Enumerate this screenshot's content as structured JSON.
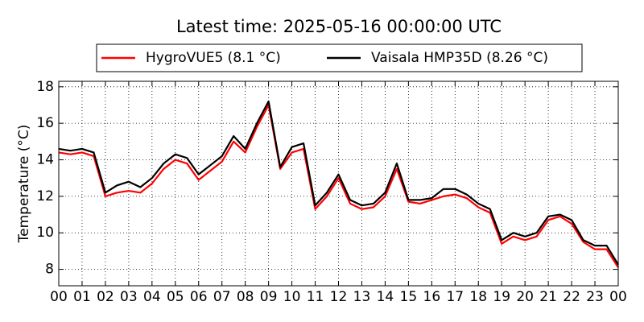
{
  "chart_data": {
    "type": "line",
    "title": "Latest time: 2025-05-16 00:00:00 UTC",
    "y_label": "Temperature (°C)",
    "x": [
      0,
      0.5,
      1,
      1.5,
      2,
      2.5,
      3,
      3.5,
      4,
      4.5,
      5,
      5.5,
      6,
      6.5,
      7,
      7.5,
      8,
      8.5,
      9,
      9.5,
      10,
      10.5,
      11,
      11.5,
      12,
      12.5,
      13,
      13.5,
      14,
      14.5,
      15,
      15.5,
      16,
      16.5,
      17,
      17.5,
      18,
      18.5,
      19,
      19.5,
      20,
      20.5,
      21,
      21.5,
      22,
      22.5,
      23,
      23.5,
      24
    ],
    "series": [
      {
        "name": "HygroVUE5 (8.1 °C)",
        "color": "#ff0000",
        "values": [
          14.4,
          14.3,
          14.4,
          14.2,
          12.0,
          12.2,
          12.3,
          12.2,
          12.7,
          13.5,
          14.0,
          13.8,
          12.9,
          13.4,
          13.9,
          15.0,
          14.4,
          15.8,
          17.0,
          13.5,
          14.4,
          14.6,
          11.3,
          12.0,
          13.0,
          11.6,
          11.3,
          11.4,
          12.0,
          13.5,
          11.7,
          11.6,
          11.8,
          12.0,
          12.1,
          11.9,
          11.4,
          11.1,
          9.4,
          9.8,
          9.6,
          9.8,
          10.7,
          10.9,
          10.5,
          9.5,
          9.1,
          9.1,
          8.1
        ]
      },
      {
        "name": "Vaisala HMP35D (8.26 °C)",
        "color": "#000000",
        "values": [
          14.6,
          14.5,
          14.6,
          14.4,
          12.2,
          12.6,
          12.8,
          12.5,
          13.0,
          13.8,
          14.3,
          14.1,
          13.2,
          13.7,
          14.2,
          15.3,
          14.6,
          16.0,
          17.2,
          13.6,
          14.7,
          14.9,
          11.5,
          12.2,
          13.2,
          11.8,
          11.5,
          11.6,
          12.2,
          13.8,
          11.8,
          11.8,
          11.9,
          12.4,
          12.4,
          12.1,
          11.6,
          11.3,
          9.6,
          10.0,
          9.8,
          10.0,
          10.9,
          11.0,
          10.7,
          9.6,
          9.3,
          9.3,
          8.26
        ]
      }
    ],
    "xlim": [
      0,
      24
    ],
    "xticks": [
      {
        "value": 0,
        "label": "00"
      },
      {
        "value": 1,
        "label": "01"
      },
      {
        "value": 2,
        "label": "02"
      },
      {
        "value": 3,
        "label": "03"
      },
      {
        "value": 4,
        "label": "04"
      },
      {
        "value": 5,
        "label": "05"
      },
      {
        "value": 6,
        "label": "06"
      },
      {
        "value": 7,
        "label": "07"
      },
      {
        "value": 8,
        "label": "08"
      },
      {
        "value": 9,
        "label": "09"
      },
      {
        "value": 10,
        "label": "10"
      },
      {
        "value": 11,
        "label": "11"
      },
      {
        "value": 12,
        "label": "12"
      },
      {
        "value": 13,
        "label": "13"
      },
      {
        "value": 14,
        "label": "14"
      },
      {
        "value": 15,
        "label": "15"
      },
      {
        "value": 16,
        "label": "16"
      },
      {
        "value": 17,
        "label": "17"
      },
      {
        "value": 18,
        "label": "18"
      },
      {
        "value": 19,
        "label": "19"
      },
      {
        "value": 20,
        "label": "20"
      },
      {
        "value": 21,
        "label": "21"
      },
      {
        "value": 22,
        "label": "22"
      },
      {
        "value": 23,
        "label": "23"
      },
      {
        "value": 24,
        "label": "00"
      }
    ],
    "ylim": [
      7.1,
      18.3
    ],
    "yticks": [
      8,
      10,
      12,
      14,
      16,
      18
    ],
    "grid": true
  }
}
